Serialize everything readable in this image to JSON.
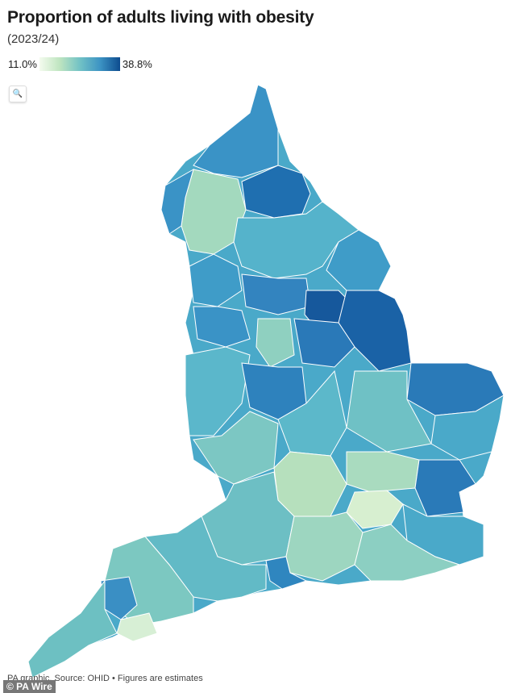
{
  "title": "Proportion of adults living with obesity",
  "subtitle": "(2023/24)",
  "legend": {
    "min_label": "11.0%",
    "max_label": "38.8%",
    "min_color": "#f4fbee",
    "max_color": "#0d4c8f"
  },
  "zoom_button": {
    "icon": "search-icon"
  },
  "footer": "PA graphic. Source: OHID • Figures are estimates",
  "watermark": "© PA Wire",
  "map": {
    "type": "choropleth",
    "area": "England local authorities",
    "scale": "sequential green-blue",
    "range": [
      11.0,
      38.8
    ]
  }
}
